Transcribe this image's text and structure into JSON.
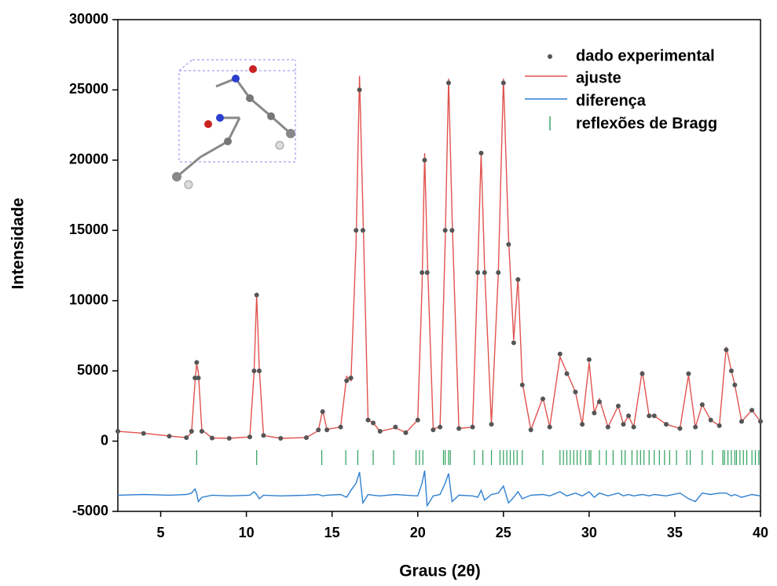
{
  "chart_data": {
    "type": "line",
    "xlabel": "Graus (2θ)",
    "ylabel": "Intensidade",
    "x": [
      2.5,
      4,
      5.5,
      6.5,
      6.8,
      7.0,
      7.1,
      7.2,
      7.4,
      8,
      9,
      10.2,
      10.45,
      10.6,
      10.75,
      11.0,
      12,
      13.5,
      14.2,
      14.45,
      14.7,
      15.5,
      15.85,
      16.1,
      16.4,
      16.6,
      16.8,
      17.1,
      17.4,
      17.8,
      18.7,
      19.3,
      20.0,
      20.25,
      20.4,
      20.55,
      20.9,
      21.3,
      21.6,
      21.8,
      22.0,
      22.4,
      23.2,
      23.5,
      23.7,
      23.9,
      24.3,
      24.7,
      25.0,
      25.3,
      25.6,
      25.85,
      26.1,
      26.6,
      27.3,
      27.7,
      28.3,
      28.7,
      29.2,
      29.6,
      30.0,
      30.3,
      30.6,
      31.1,
      31.7,
      32.0,
      32.3,
      32.6,
      33.1,
      33.5,
      33.8,
      34.5,
      35.3,
      35.8,
      36.2,
      36.6,
      37.1,
      37.6,
      38.0,
      38.3,
      38.5,
      38.9,
      39.5,
      40
    ],
    "series": [
      {
        "name": "dado experimental",
        "color": "#555555",
        "style": "points",
        "values": [
          700,
          550,
          350,
          250,
          700,
          4500,
          5600,
          4500,
          700,
          220,
          200,
          300,
          5000,
          10400,
          5000,
          400,
          200,
          250,
          800,
          2100,
          800,
          1000,
          4300,
          4500,
          15000,
          25000,
          15000,
          1500,
          1300,
          700,
          1000,
          600,
          1500,
          12000,
          20000,
          12000,
          800,
          1000,
          15000,
          25500,
          15000,
          900,
          1000,
          12000,
          20500,
          12000,
          1200,
          12000,
          25500,
          14000,
          7000,
          11500,
          4000,
          800,
          3000,
          1000,
          6200,
          4800,
          3500,
          1200,
          5800,
          2000,
          2800,
          1000,
          2500,
          1200,
          1800,
          1000,
          4800,
          1800,
          1800,
          1200,
          900,
          4800,
          1000,
          2600,
          1500,
          1100,
          6500,
          5000,
          4000,
          1400,
          2200,
          1400
        ]
      },
      {
        "name": "ajuste",
        "color": "#e0534f",
        "style": "line",
        "values": [
          700,
          560,
          360,
          250,
          600,
          4200,
          5500,
          4900,
          800,
          220,
          200,
          300,
          4900,
          10400,
          5200,
          400,
          200,
          250,
          750,
          2200,
          850,
          1000,
          4600,
          4300,
          14000,
          26000,
          16500,
          1500,
          1300,
          700,
          950,
          600,
          1500,
          11000,
          20500,
          13500,
          900,
          1000,
          14000,
          25800,
          16000,
          900,
          1000,
          12200,
          20500,
          12300,
          1200,
          12000,
          25800,
          14500,
          7200,
          11600,
          4200,
          800,
          3100,
          1000,
          6000,
          4900,
          3500,
          1200,
          5600,
          2000,
          3000,
          1000,
          2500,
          1200,
          1800,
          1000,
          5000,
          1800,
          1800,
          1200,
          900,
          4700,
          1000,
          2600,
          1500,
          1100,
          6700,
          5000,
          4000,
          1400,
          2200,
          1400
        ]
      },
      {
        "name": "diferença",
        "color": "#2f7fd0",
        "style": "line",
        "values": [
          -3850,
          -3800,
          -3850,
          -3800,
          -3700,
          -3400,
          -3700,
          -4300,
          -4000,
          -3850,
          -3900,
          -3850,
          -3600,
          -3800,
          -4100,
          -3850,
          -3900,
          -3850,
          -3800,
          -3900,
          -3850,
          -3800,
          -4000,
          -3500,
          -3000,
          -2200,
          -4400,
          -3800,
          -3850,
          -3900,
          -3800,
          -3850,
          -3900,
          -3000,
          -2100,
          -4600,
          -3900,
          -3800,
          -3000,
          -2300,
          -4300,
          -3850,
          -3900,
          -4000,
          -3500,
          -4200,
          -3800,
          -3700,
          -3200,
          -4400,
          -4000,
          -3600,
          -4100,
          -3850,
          -3800,
          -3900,
          -3600,
          -3900,
          -3700,
          -3900,
          -3600,
          -4000,
          -3700,
          -3900,
          -3700,
          -3900,
          -3800,
          -3900,
          -3800,
          -3900,
          -3800,
          -3900,
          -3700,
          -4100,
          -4300,
          -3700,
          -3800,
          -3700,
          -3700,
          -3900,
          -3800,
          -4000,
          -3800,
          -3900
        ]
      }
    ],
    "bragg": {
      "name": "reflexões de Bragg",
      "color": "#2ca05a",
      "positions": [
        7.1,
        10.6,
        14.4,
        15.8,
        16.5,
        17.4,
        18.6,
        19.9,
        20.1,
        20.3,
        21.5,
        21.6,
        21.8,
        21.9,
        23.3,
        23.8,
        24.3,
        24.8,
        25.0,
        25.2,
        25.4,
        25.6,
        25.8,
        26.1,
        27.3,
        28.3,
        28.5,
        28.7,
        28.9,
        29.1,
        29.3,
        29.5,
        29.8,
        30.0,
        30.1,
        30.6,
        31.0,
        31.4,
        31.9,
        32.1,
        32.5,
        32.8,
        33.0,
        33.2,
        33.5,
        33.8,
        34.1,
        34.4,
        34.7,
        35.1,
        35.7,
        35.9,
        36.6,
        37.2,
        37.8,
        37.9,
        38.1,
        38.3,
        38.5,
        38.6,
        38.8,
        39.0,
        39.2,
        39.5,
        39.7,
        39.9
      ]
    },
    "xlim": [
      2.5,
      40
    ],
    "xticks": [
      5,
      10,
      15,
      20,
      25,
      30,
      35,
      40
    ],
    "ylim": [
      -5000,
      30000
    ],
    "yticks": [
      -5000,
      0,
      5000,
      10000,
      15000,
      20000,
      25000,
      30000
    ]
  }
}
